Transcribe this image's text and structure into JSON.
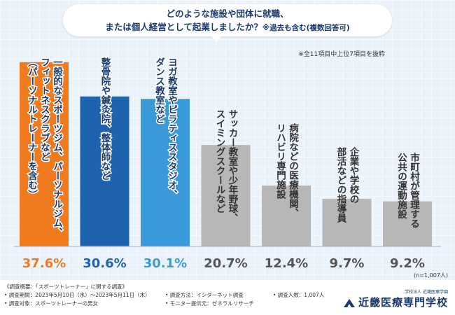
{
  "header": {
    "question_line1": "どのような施設や団体に就職、",
    "question_line2": "または個人経営として起業しましたか？",
    "question_suffix": "※過去も含む(複数回答可)",
    "note": "※全11項目中上位7項目を抜粋"
  },
  "chart_data": {
    "type": "bar",
    "categories": [
      "一般的なスポーツジム、パーソナルジム、フィットネスクラブなど（パーソナルトレーナーを含む）",
      "整骨院や鍼灸院、整体師など",
      "ヨガ教室やピラティススタジオ、ダンス教室など",
      "サッカー教室や少年野球、スイミングスクールなど",
      "病院などの医療機関、リハビリ専門施設",
      "企業や学校の部活などの指導員",
      "市町村が管理する公共の運動施設"
    ],
    "label_columns": [
      [
        "一般的なスポーツジム、パーソナルジム、",
        "フィットネスクラブなど",
        "（パーソナルトレーナーを含む）"
      ],
      [
        "整骨院や鍼灸院、整体師など"
      ],
      [
        "ヨガ教室やピラティススタジオ、",
        "ダンス教室など"
      ],
      [
        "サッカー教室や少年野球、",
        "スイミングスクールなど"
      ],
      [
        "病院などの医療機関、",
        "リハビリ専門施設"
      ],
      [
        "企業や学校の",
        "部活などの指導員"
      ],
      [
        "市町村が管理する",
        "公共の運動施設"
      ]
    ],
    "values": [
      37.6,
      30.6,
      30.1,
      20.7,
      12.4,
      9.7,
      9.2
    ],
    "value_labels": [
      "37.6%",
      "30.6%",
      "30.1%",
      "20.7%",
      "12.4%",
      "9.7%",
      "9.2%"
    ],
    "colors": [
      "#f07a1e",
      "#1e63ad",
      "#3a9ad9",
      "#b7b7b7",
      "#b7b7b7",
      "#b7b7b7",
      "#b7b7b7"
    ],
    "value_colors": [
      "#f07a1e",
      "#1e63ad",
      "#3a9ad9",
      "#555555",
      "#555555",
      "#555555",
      "#555555"
    ],
    "sample_note": "(n=1,007人)",
    "ylim": [
      0,
      40
    ]
  },
  "footer": {
    "survey_title": "《調査概要：「スポーツトレーナー」に関する調査》",
    "period": "• 調査期間：2023年5月10日（水）～2023年5月11日（木）",
    "target": "• 調査対象：スポーツトレーナーの男女",
    "method": "• 調査方法：インターネット調査",
    "provider": "• モニター提供元：ゼネラルリサーチ",
    "count": "• 調査人数：1,007人",
    "logo_small": "学校法人 近畿医療学園",
    "logo_name": "近畿医療専門学校"
  }
}
